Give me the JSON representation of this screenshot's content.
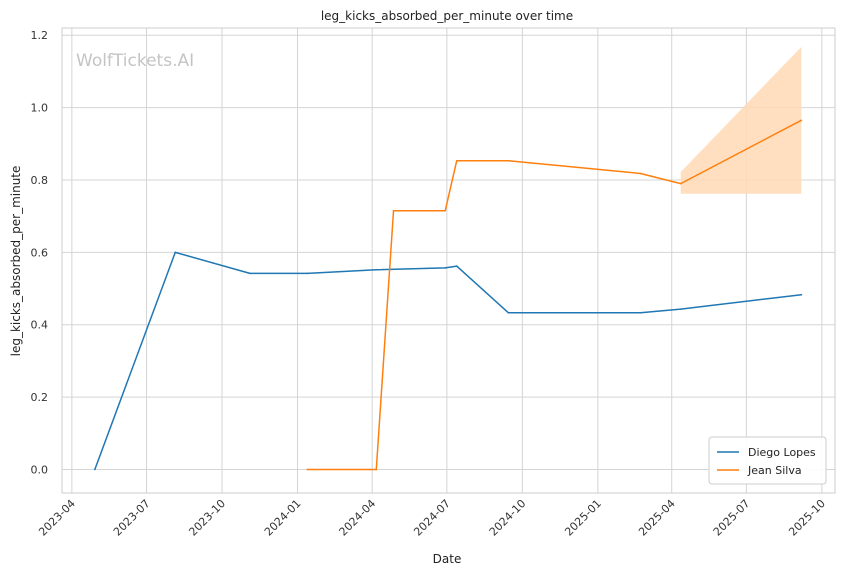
{
  "chart_data": {
    "type": "line",
    "title": "leg_kicks_absorbed_per_minute over time",
    "xlabel": "Date",
    "ylabel": "leg_kicks_absorbed_per_minute",
    "watermark": "WolfTickets.AI",
    "xlim": [
      "2023-03-20",
      "2025-10-17"
    ],
    "ylim": [
      -0.065,
      1.22
    ],
    "x_ticks": [
      "2023-04-01",
      "2023-07-01",
      "2023-10-01",
      "2024-01-01",
      "2024-04-01",
      "2024-07-01",
      "2024-10-01",
      "2025-01-01",
      "2025-04-01",
      "2025-07-01",
      "2025-10-01"
    ],
    "x_tick_labels": [
      "2023-04",
      "2023-07",
      "2023-10",
      "2024-01",
      "2024-04",
      "2024-07",
      "2024-10",
      "2025-01",
      "2025-04",
      "2025-07",
      "2025-10"
    ],
    "y_ticks": [
      0.0,
      0.2,
      0.4,
      0.6,
      0.8,
      1.0,
      1.2
    ],
    "y_tick_labels": [
      "0.0",
      "0.2",
      "0.4",
      "0.6",
      "0.8",
      "1.0",
      "1.2"
    ],
    "grid": true,
    "legend_position": "bottom-right",
    "series": [
      {
        "name": "Diego Lopes",
        "color": "#1f77b4",
        "points": [
          {
            "x": "2023-04-29",
            "y": 0.0
          },
          {
            "x": "2023-08-05",
            "y": 0.6
          },
          {
            "x": "2023-11-04",
            "y": 0.542
          },
          {
            "x": "2024-01-13",
            "y": 0.542
          },
          {
            "x": "2024-04-06",
            "y": 0.552
          },
          {
            "x": "2024-06-29",
            "y": 0.557
          },
          {
            "x": "2024-07-13",
            "y": 0.562
          },
          {
            "x": "2024-09-14",
            "y": 0.433
          },
          {
            "x": "2025-02-22",
            "y": 0.433
          },
          {
            "x": "2025-04-12",
            "y": 0.443
          },
          {
            "x": "2025-09-06",
            "y": 0.483
          }
        ]
      },
      {
        "name": "Jean Silva",
        "color": "#ff7f0e",
        "points": [
          {
            "x": "2024-01-13",
            "y": 0.0
          },
          {
            "x": "2024-04-06",
            "y": 0.0
          },
          {
            "x": "2024-04-27",
            "y": 0.715
          },
          {
            "x": "2024-06-29",
            "y": 0.715
          },
          {
            "x": "2024-07-13",
            "y": 0.853
          },
          {
            "x": "2024-09-14",
            "y": 0.853
          },
          {
            "x": "2025-02-22",
            "y": 0.818
          },
          {
            "x": "2025-04-12",
            "y": 0.79
          },
          {
            "x": "2025-09-06",
            "y": 0.965
          }
        ],
        "band": {
          "color": "#ffd9b5",
          "x": [
            "2025-04-12",
            "2025-09-06"
          ],
          "upper": [
            0.822,
            1.168
          ],
          "lower": [
            0.762,
            0.762
          ]
        }
      }
    ]
  }
}
